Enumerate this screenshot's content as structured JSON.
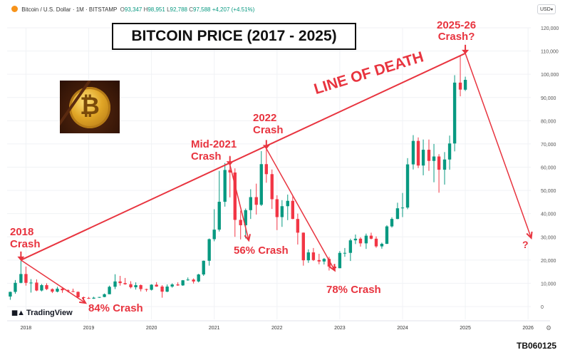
{
  "header": {
    "symbol": "Bitcoin / U.S. Dollar · 1M · BITSTAMP",
    "o_label": "O",
    "o": "93,347",
    "h_label": "H",
    "h": "98,951",
    "l_label": "L",
    "l": "92,788",
    "c_label": "C",
    "c": "97,588",
    "change": "+4,207 (+4.51%)",
    "currency": "USD"
  },
  "title": "BITCOIN PRICE (2017 - 2025)",
  "annotations": {
    "crash_2018": [
      "2018",
      "Crash"
    ],
    "crash_2021": [
      "Mid-2021",
      "Crash"
    ],
    "crash_2022": [
      "2022",
      "Crash"
    ],
    "crash_2025": [
      "2025-26",
      "Crash?"
    ],
    "line_of_death": "LINE OF DEATH",
    "drop_84": "84% Crash",
    "drop_56": "56% Crash",
    "drop_78": "78% Crash",
    "question": "?"
  },
  "logo": "TradingView",
  "footer_code": "TB060125",
  "icons": {
    "coin": "bitcoin-icon",
    "settings": "gear-icon",
    "tv": "tradingview-logo-icon"
  },
  "colors": {
    "up": "#089981",
    "down": "#f23645",
    "annotation": "#e8343f"
  },
  "chart_data": {
    "type": "candlestick",
    "interval": "1M",
    "y_axis": {
      "min": 0,
      "max": 120000,
      "ticks": [
        0,
        10000,
        20000,
        30000,
        40000,
        50000,
        60000,
        70000,
        80000,
        90000,
        100000,
        110000,
        120000
      ],
      "tick_labels": [
        "0",
        "10,000",
        "20,000",
        "30,000",
        "40,000",
        "50,000",
        "60,000",
        "70,000",
        "80,000",
        "90,000",
        "100,000",
        "110,000",
        "120,000"
      ]
    },
    "x_axis": {
      "ticks": [
        "2018",
        "2019",
        "2020",
        "2021",
        "2022",
        "2023",
        "2024",
        "2025",
        "2026"
      ],
      "start": 2017.7,
      "end": 2026.35
    },
    "candles": [
      {
        "t": 2017.75,
        "o": 4300,
        "h": 6400,
        "l": 2900,
        "c": 6300
      },
      {
        "t": 2017.83,
        "o": 6300,
        "h": 11400,
        "l": 5500,
        "c": 10200
      },
      {
        "t": 2017.92,
        "o": 10200,
        "h": 19700,
        "l": 10000,
        "c": 14000
      },
      {
        "t": 2018.0,
        "o": 14000,
        "h": 17200,
        "l": 9000,
        "c": 10200
      },
      {
        "t": 2018.08,
        "o": 10200,
        "h": 11800,
        "l": 6000,
        "c": 10300
      },
      {
        "t": 2018.17,
        "o": 10300,
        "h": 11700,
        "l": 6600,
        "c": 6900
      },
      {
        "t": 2018.25,
        "o": 6900,
        "h": 9700,
        "l": 6500,
        "c": 9200
      },
      {
        "t": 2018.33,
        "o": 9200,
        "h": 10000,
        "l": 7100,
        "c": 7500
      },
      {
        "t": 2018.42,
        "o": 7500,
        "h": 7800,
        "l": 5800,
        "c": 6400
      },
      {
        "t": 2018.5,
        "o": 6400,
        "h": 8500,
        "l": 6100,
        "c": 7700
      },
      {
        "t": 2018.58,
        "o": 7700,
        "h": 8400,
        "l": 5900,
        "c": 7000
      },
      {
        "t": 2018.67,
        "o": 7000,
        "h": 7400,
        "l": 6100,
        "c": 6600
      },
      {
        "t": 2018.75,
        "o": 6600,
        "h": 7700,
        "l": 6200,
        "c": 6300
      },
      {
        "t": 2018.83,
        "o": 6300,
        "h": 6500,
        "l": 3500,
        "c": 4000
      },
      {
        "t": 2018.92,
        "o": 4000,
        "h": 4300,
        "l": 3100,
        "c": 3700
      },
      {
        "t": 2019.0,
        "o": 3700,
        "h": 4100,
        "l": 3300,
        "c": 3400
      },
      {
        "t": 2019.08,
        "o": 3400,
        "h": 4200,
        "l": 3300,
        "c": 3800
      },
      {
        "t": 2019.17,
        "o": 3800,
        "h": 4100,
        "l": 3700,
        "c": 4100
      },
      {
        "t": 2019.25,
        "o": 4100,
        "h": 5600,
        "l": 4000,
        "c": 5300
      },
      {
        "t": 2019.33,
        "o": 5300,
        "h": 9000,
        "l": 5300,
        "c": 8500
      },
      {
        "t": 2019.42,
        "o": 8500,
        "h": 13900,
        "l": 7500,
        "c": 10800
      },
      {
        "t": 2019.5,
        "o": 10800,
        "h": 13200,
        "l": 9000,
        "c": 10100
      },
      {
        "t": 2019.58,
        "o": 10100,
        "h": 12300,
        "l": 9400,
        "c": 9600
      },
      {
        "t": 2019.67,
        "o": 9600,
        "h": 10900,
        "l": 7800,
        "c": 8300
      },
      {
        "t": 2019.75,
        "o": 8300,
        "h": 10400,
        "l": 7300,
        "c": 9200
      },
      {
        "t": 2019.83,
        "o": 9200,
        "h": 9500,
        "l": 6500,
        "c": 7500
      },
      {
        "t": 2019.92,
        "o": 7500,
        "h": 7700,
        "l": 6400,
        "c": 7200
      },
      {
        "t": 2020.0,
        "o": 7200,
        "h": 9600,
        "l": 6900,
        "c": 9400
      },
      {
        "t": 2020.08,
        "o": 9400,
        "h": 10500,
        "l": 8500,
        "c": 8600
      },
      {
        "t": 2020.17,
        "o": 8600,
        "h": 9200,
        "l": 3800,
        "c": 6400
      },
      {
        "t": 2020.25,
        "o": 6400,
        "h": 9500,
        "l": 6200,
        "c": 8600
      },
      {
        "t": 2020.33,
        "o": 8600,
        "h": 10000,
        "l": 8100,
        "c": 9500
      },
      {
        "t": 2020.42,
        "o": 9500,
        "h": 10400,
        "l": 8900,
        "c": 9100
      },
      {
        "t": 2020.5,
        "o": 9100,
        "h": 11400,
        "l": 8900,
        "c": 11300
      },
      {
        "t": 2020.58,
        "o": 11300,
        "h": 12500,
        "l": 11100,
        "c": 11600
      },
      {
        "t": 2020.67,
        "o": 11600,
        "h": 12100,
        "l": 9900,
        "c": 10800
      },
      {
        "t": 2020.75,
        "o": 10800,
        "h": 14100,
        "l": 10400,
        "c": 13800
      },
      {
        "t": 2020.83,
        "o": 13800,
        "h": 19800,
        "l": 13200,
        "c": 19700
      },
      {
        "t": 2020.92,
        "o": 19700,
        "h": 29300,
        "l": 17600,
        "c": 29000
      },
      {
        "t": 2021.0,
        "o": 29000,
        "h": 41900,
        "l": 28100,
        "c": 33100
      },
      {
        "t": 2021.08,
        "o": 33100,
        "h": 58400,
        "l": 32300,
        "c": 45100
      },
      {
        "t": 2021.17,
        "o": 45100,
        "h": 61800,
        "l": 43000,
        "c": 58800
      },
      {
        "t": 2021.25,
        "o": 58800,
        "h": 64900,
        "l": 47000,
        "c": 57700
      },
      {
        "t": 2021.33,
        "o": 57700,
        "h": 59500,
        "l": 30000,
        "c": 37300
      },
      {
        "t": 2021.42,
        "o": 37300,
        "h": 41300,
        "l": 28900,
        "c": 35000
      },
      {
        "t": 2021.5,
        "o": 35000,
        "h": 42200,
        "l": 29300,
        "c": 41500
      },
      {
        "t": 2021.58,
        "o": 41500,
        "h": 50500,
        "l": 37700,
        "c": 47100
      },
      {
        "t": 2021.67,
        "o": 47100,
        "h": 52900,
        "l": 39600,
        "c": 43800
      },
      {
        "t": 2021.75,
        "o": 43800,
        "h": 66900,
        "l": 43300,
        "c": 61300
      },
      {
        "t": 2021.83,
        "o": 61300,
        "h": 69000,
        "l": 53300,
        "c": 57000
      },
      {
        "t": 2021.92,
        "o": 57000,
        "h": 59000,
        "l": 42000,
        "c": 46200
      },
      {
        "t": 2022.0,
        "o": 46200,
        "h": 47900,
        "l": 32900,
        "c": 38500
      },
      {
        "t": 2022.08,
        "o": 38500,
        "h": 45800,
        "l": 34300,
        "c": 43200
      },
      {
        "t": 2022.17,
        "o": 43200,
        "h": 48200,
        "l": 37200,
        "c": 45500
      },
      {
        "t": 2022.25,
        "o": 45500,
        "h": 47400,
        "l": 37600,
        "c": 37700
      },
      {
        "t": 2022.33,
        "o": 37700,
        "h": 40000,
        "l": 26700,
        "c": 31800
      },
      {
        "t": 2022.42,
        "o": 31800,
        "h": 31900,
        "l": 17600,
        "c": 19900
      },
      {
        "t": 2022.5,
        "o": 19900,
        "h": 24600,
        "l": 18800,
        "c": 23300
      },
      {
        "t": 2022.58,
        "o": 23300,
        "h": 25200,
        "l": 19600,
        "c": 20000
      },
      {
        "t": 2022.67,
        "o": 20000,
        "h": 22700,
        "l": 18200,
        "c": 19400
      },
      {
        "t": 2022.75,
        "o": 19400,
        "h": 20900,
        "l": 18100,
        "c": 20500
      },
      {
        "t": 2022.83,
        "o": 20500,
        "h": 21400,
        "l": 15500,
        "c": 17200
      },
      {
        "t": 2022.92,
        "o": 17200,
        "h": 18400,
        "l": 16300,
        "c": 16500
      },
      {
        "t": 2023.0,
        "o": 16500,
        "h": 23900,
        "l": 16500,
        "c": 23100
      },
      {
        "t": 2023.08,
        "o": 23100,
        "h": 25200,
        "l": 21400,
        "c": 23100
      },
      {
        "t": 2023.17,
        "o": 23100,
        "h": 29200,
        "l": 19600,
        "c": 28500
      },
      {
        "t": 2023.25,
        "o": 28500,
        "h": 31000,
        "l": 26900,
        "c": 29200
      },
      {
        "t": 2023.33,
        "o": 29200,
        "h": 29800,
        "l": 25800,
        "c": 27200
      },
      {
        "t": 2023.42,
        "o": 27200,
        "h": 31400,
        "l": 24800,
        "c": 30500
      },
      {
        "t": 2023.5,
        "o": 30500,
        "h": 31800,
        "l": 28900,
        "c": 29200
      },
      {
        "t": 2023.58,
        "o": 29200,
        "h": 30200,
        "l": 25300,
        "c": 25900
      },
      {
        "t": 2023.67,
        "o": 25900,
        "h": 27500,
        "l": 24900,
        "c": 27000
      },
      {
        "t": 2023.75,
        "o": 27000,
        "h": 35000,
        "l": 26900,
        "c": 34500
      },
      {
        "t": 2023.83,
        "o": 34500,
        "h": 38400,
        "l": 34000,
        "c": 37700
      },
      {
        "t": 2023.92,
        "o": 37700,
        "h": 44700,
        "l": 37600,
        "c": 42300
      },
      {
        "t": 2024.0,
        "o": 42300,
        "h": 48900,
        "l": 38500,
        "c": 42600
      },
      {
        "t": 2024.08,
        "o": 42600,
        "h": 63900,
        "l": 41900,
        "c": 61200
      },
      {
        "t": 2024.17,
        "o": 61200,
        "h": 73800,
        "l": 59000,
        "c": 71300
      },
      {
        "t": 2024.25,
        "o": 71300,
        "h": 72800,
        "l": 59600,
        "c": 60700
      },
      {
        "t": 2024.33,
        "o": 60700,
        "h": 71900,
        "l": 56500,
        "c": 67500
      },
      {
        "t": 2024.42,
        "o": 67500,
        "h": 71900,
        "l": 58400,
        "c": 62700
      },
      {
        "t": 2024.5,
        "o": 62700,
        "h": 70000,
        "l": 53500,
        "c": 64600
      },
      {
        "t": 2024.58,
        "o": 64600,
        "h": 65600,
        "l": 49000,
        "c": 58900
      },
      {
        "t": 2024.67,
        "o": 58900,
        "h": 66500,
        "l": 52500,
        "c": 63300
      },
      {
        "t": 2024.75,
        "o": 63300,
        "h": 73600,
        "l": 58900,
        "c": 70200
      },
      {
        "t": 2024.83,
        "o": 70200,
        "h": 99600,
        "l": 66800,
        "c": 96400
      },
      {
        "t": 2024.92,
        "o": 96400,
        "h": 108300,
        "l": 90500,
        "c": 93400
      },
      {
        "t": 2025.0,
        "o": 93347,
        "h": 98951,
        "l": 92788,
        "c": 97588
      }
    ],
    "line_of_death": {
      "from": {
        "t": 2017.92,
        "v": 20000
      },
      "to": {
        "t": 2025.0,
        "v": 109000
      }
    },
    "crash_paths": [
      {
        "from": {
          "t": 2017.92,
          "v": 20000
        },
        "to": {
          "t": 2018.95,
          "v": 1500
        }
      },
      {
        "from": {
          "t": 2021.25,
          "v": 61000
        },
        "to": {
          "t": 2021.55,
          "v": 28500
        }
      },
      {
        "from": {
          "t": 2021.83,
          "v": 68000
        },
        "to": {
          "t": 2022.92,
          "v": 15500
        }
      },
      {
        "from": {
          "t": 2025.0,
          "v": 109000
        },
        "to": {
          "t": 2026.05,
          "v": 29500
        }
      }
    ]
  }
}
